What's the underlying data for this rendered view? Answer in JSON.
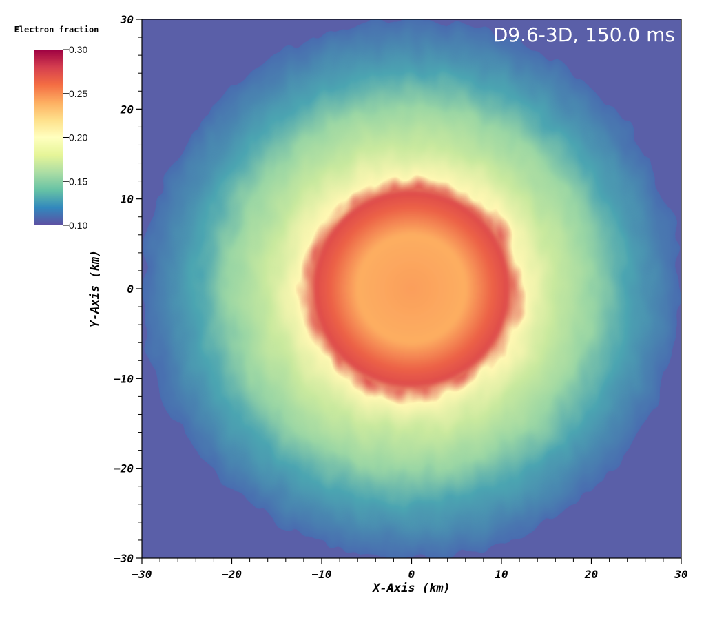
{
  "chart_data": {
    "type": "heatmap",
    "title": "D9.6-3D, 150.0 ms",
    "xlabel": "X-Axis (km)",
    "ylabel": "Y-Axis (km)",
    "xlim": [
      -30,
      30
    ],
    "ylim": [
      -30,
      30
    ],
    "x_ticks": [
      -30,
      -20,
      -10,
      0,
      10,
      20,
      30
    ],
    "y_ticks": [
      -30,
      -20,
      -10,
      0,
      10,
      20,
      30
    ],
    "x_tick_labels": [
      "−30",
      "−20",
      "−10",
      "0",
      "10",
      "20",
      "30"
    ],
    "y_tick_labels": [
      "−30",
      "−20",
      "−10",
      "0",
      "10",
      "20",
      "30"
    ],
    "colorbar": {
      "title": "Electron fraction",
      "range": [
        0.1,
        0.3
      ],
      "ticks": [
        0.3,
        0.25,
        0.2,
        0.15,
        0.1
      ],
      "tick_labels": [
        "0.30",
        "0.25",
        "0.20",
        "0.15",
        "0.10"
      ],
      "colormap": "Spectral (reversed)",
      "stops": [
        {
          "value": 0.1,
          "color": "#5e4fa2"
        },
        {
          "value": 0.12,
          "color": "#3288bd"
        },
        {
          "value": 0.14,
          "color": "#66c2a5"
        },
        {
          "value": 0.16,
          "color": "#abdda4"
        },
        {
          "value": 0.18,
          "color": "#e6f598"
        },
        {
          "value": 0.2,
          "color": "#ffffbf"
        },
        {
          "value": 0.22,
          "color": "#fee08b"
        },
        {
          "value": 0.24,
          "color": "#fdae61"
        },
        {
          "value": 0.26,
          "color": "#f46d43"
        },
        {
          "value": 0.28,
          "color": "#d53e4f"
        },
        {
          "value": 0.3,
          "color": "#9e0142"
        }
      ]
    },
    "radial_profile": [
      {
        "r": 0,
        "ye": 0.245
      },
      {
        "r": 6,
        "ye": 0.24
      },
      {
        "r": 9,
        "ye": 0.265
      },
      {
        "r": 10.8,
        "ye": 0.275
      },
      {
        "r": 12.5,
        "ye": 0.205
      },
      {
        "r": 16,
        "ye": 0.17
      },
      {
        "r": 20,
        "ye": 0.155
      },
      {
        "r": 24,
        "ye": 0.13
      },
      {
        "r": 30,
        "ye": 0.11
      }
    ]
  }
}
